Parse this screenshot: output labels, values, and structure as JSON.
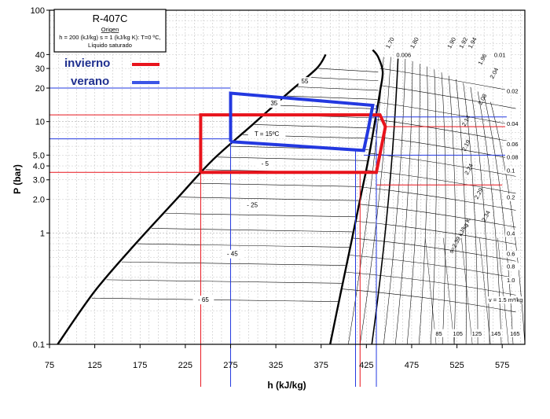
{
  "chart_data": {
    "type": "line",
    "title": "R-407C",
    "info_box": {
      "heading": "Origen",
      "line1": "h = 200 (kJ/kg)  s = 1 (kJ/kg K): T=0 ºC,",
      "line2": "Líquido saturado"
    },
    "xlabel": "h (kJ/kg)",
    "ylabel": "P (bar)",
    "xlim": [
      75,
      600
    ],
    "ylim": [
      0.1,
      100
    ],
    "yscale": "log",
    "grid": true,
    "x_ticks": [
      "75",
      "125",
      "175",
      "225",
      "275",
      "325",
      "375",
      "425",
      "475",
      "525",
      "575"
    ],
    "y_ticks": [
      {
        "value": 100,
        "label": "100"
      },
      {
        "value": 40,
        "label": "40"
      },
      {
        "value": 30,
        "label": "30"
      },
      {
        "value": 20,
        "label": "20"
      },
      {
        "value": 10,
        "label": "10"
      },
      {
        "value": 5,
        "label": "5.0"
      },
      {
        "value": 4,
        "label": "4.0"
      },
      {
        "value": 3,
        "label": "3.0"
      },
      {
        "value": 2,
        "label": "2.0"
      },
      {
        "value": 1,
        "label": "1"
      },
      {
        "value": 0.1,
        "label": "0.1"
      }
    ],
    "legend": {
      "placement": "top-left",
      "items": [
        {
          "label": "invierno",
          "color": "#e8141c",
          "text_color": "#1f2f8f"
        },
        {
          "label": "verano",
          "color": "#3b55e6",
          "text_color": "#1f2f8f"
        }
      ]
    },
    "saturation_liquid": [
      [
        84,
        0.1
      ],
      [
        125,
        0.3
      ],
      [
        170,
        0.8
      ],
      [
        215,
        2.0
      ],
      [
        255,
        4.5
      ],
      [
        300,
        9.5
      ],
      [
        340,
        18.5
      ],
      [
        370,
        30
      ],
      [
        380,
        40
      ]
    ],
    "saturation_vapor": [
      [
        385,
        0.1
      ],
      [
        397,
        0.3
      ],
      [
        408,
        0.8
      ],
      [
        418,
        2.0
      ],
      [
        427,
        4.5
      ],
      [
        434,
        9.5
      ],
      [
        440,
        18.5
      ],
      [
        443,
        28
      ],
      [
        438,
        38
      ],
      [
        432,
        44
      ]
    ],
    "isotherms": [
      {
        "label": "55",
        "h": 357,
        "p": 22
      },
      {
        "label": "35",
        "h": 323,
        "p": 14
      },
      {
        "label": "T = 15ºC",
        "h": 315,
        "p": 7.4
      },
      {
        "label": "- 5",
        "h": 313,
        "p": 4.0
      },
      {
        "label": "- 25",
        "h": 299,
        "p": 1.7
      },
      {
        "label": "- 45",
        "h": 277,
        "p": 0.62
      },
      {
        "label": "- 65",
        "h": 245,
        "p": 0.24
      }
    ],
    "entropy_labels": [
      {
        "label": "1.70",
        "h": 450,
        "p": 45
      },
      {
        "label": "1.80",
        "h": 477,
        "p": 45
      },
      {
        "label": "1.90",
        "h": 518,
        "p": 45
      },
      {
        "label": "1.92",
        "h": 531,
        "p": 45
      },
      {
        "label": "1.94",
        "h": 541,
        "p": 45
      },
      {
        "label": "1.96",
        "h": 552,
        "p": 32
      },
      {
        "label": "2.04",
        "h": 565,
        "p": 24
      },
      {
        "label": "2.08",
        "h": 552,
        "p": 14
      },
      {
        "label": "2.14",
        "h": 534,
        "p": 9
      },
      {
        "label": "2.19",
        "h": 534,
        "p": 5.4
      },
      {
        "label": "2.24",
        "h": 537,
        "p": 3.3
      },
      {
        "label": "2.29",
        "h": 548,
        "p": 2.0
      },
      {
        "label": "2.34",
        "h": 556,
        "p": 1.25
      }
    ],
    "volume_labels": [
      {
        "label": "0.006",
        "h": 458,
        "p": 38
      },
      {
        "label": "0.01",
        "h": 566,
        "p": 38
      },
      {
        "label": "0.02",
        "h": 580,
        "p": 18
      },
      {
        "label": "0.04",
        "h": 580,
        "p": 9.2
      },
      {
        "label": "0.06",
        "h": 580,
        "p": 6.0
      },
      {
        "label": "0.08",
        "h": 580,
        "p": 4.6
      },
      {
        "label": "0.1",
        "h": 580,
        "p": 3.5
      },
      {
        "label": "0.2",
        "h": 580,
        "p": 2.0
      },
      {
        "label": "0.4",
        "h": 580,
        "p": 0.95
      },
      {
        "label": "0.6",
        "h": 580,
        "p": 0.62
      },
      {
        "label": "0.8",
        "h": 580,
        "p": 0.48
      },
      {
        "label": "1.0",
        "h": 580,
        "p": 0.36
      },
      {
        "label": "v = 1.5 m³/kg",
        "h": 560,
        "p": 0.24
      }
    ],
    "entropy_unit_label": {
      "label": "s=2.39 kJ/kg K",
      "h": 520,
      "p": 0.65
    },
    "bottom_temperatures": [
      "85",
      "105",
      "125",
      "145",
      "165"
    ],
    "series": [
      {
        "name": "invierno",
        "color": "#e8141c",
        "cycle": [
          [
            242,
            3.5
          ],
          [
            242,
            11.5
          ],
          [
            440,
            11.5
          ],
          [
            446,
            9.0
          ],
          [
            436,
            3.5
          ],
          [
            242,
            3.5
          ]
        ],
        "pressure_lines": [
          {
            "p": 11.5,
            "h_from": 75,
            "h_to": 242
          },
          {
            "p": 9.0,
            "h_from": 446,
            "h_to": 580
          },
          {
            "p": 3.5,
            "h_from": 75,
            "h_to": 242
          },
          {
            "p": 2.7,
            "h_from": 436,
            "h_to": 575
          }
        ],
        "enthalpy_lines": [
          {
            "h": 242,
            "p_from": 0.1,
            "p_to": 3.5
          },
          {
            "h": 418,
            "p_from": 0.1,
            "p_to": 3.5
          }
        ]
      },
      {
        "name": "verano",
        "color": "#2338e0",
        "cycle": [
          [
            275,
            6.6
          ],
          [
            275,
            18.0
          ],
          [
            432,
            14.0
          ],
          [
            427,
            8.5
          ],
          [
            422,
            5.5
          ],
          [
            275,
            6.6
          ]
        ],
        "pressure_lines": [
          {
            "p": 20.0,
            "h_from": 75,
            "h_to": 275
          },
          {
            "p": 7.0,
            "h_from": 75,
            "h_to": 275
          },
          {
            "p": 11.0,
            "h_from": 432,
            "h_to": 580
          },
          {
            "p": 5.0,
            "h_from": 422,
            "h_to": 580
          }
        ],
        "enthalpy_lines": [
          {
            "h": 275,
            "p_from": 0.1,
            "p_to": 6.6
          },
          {
            "h": 413,
            "p_from": 0.1,
            "p_to": 5.5
          },
          {
            "h": 436,
            "p_from": 0.1,
            "p_to": 14.0
          }
        ]
      }
    ]
  }
}
